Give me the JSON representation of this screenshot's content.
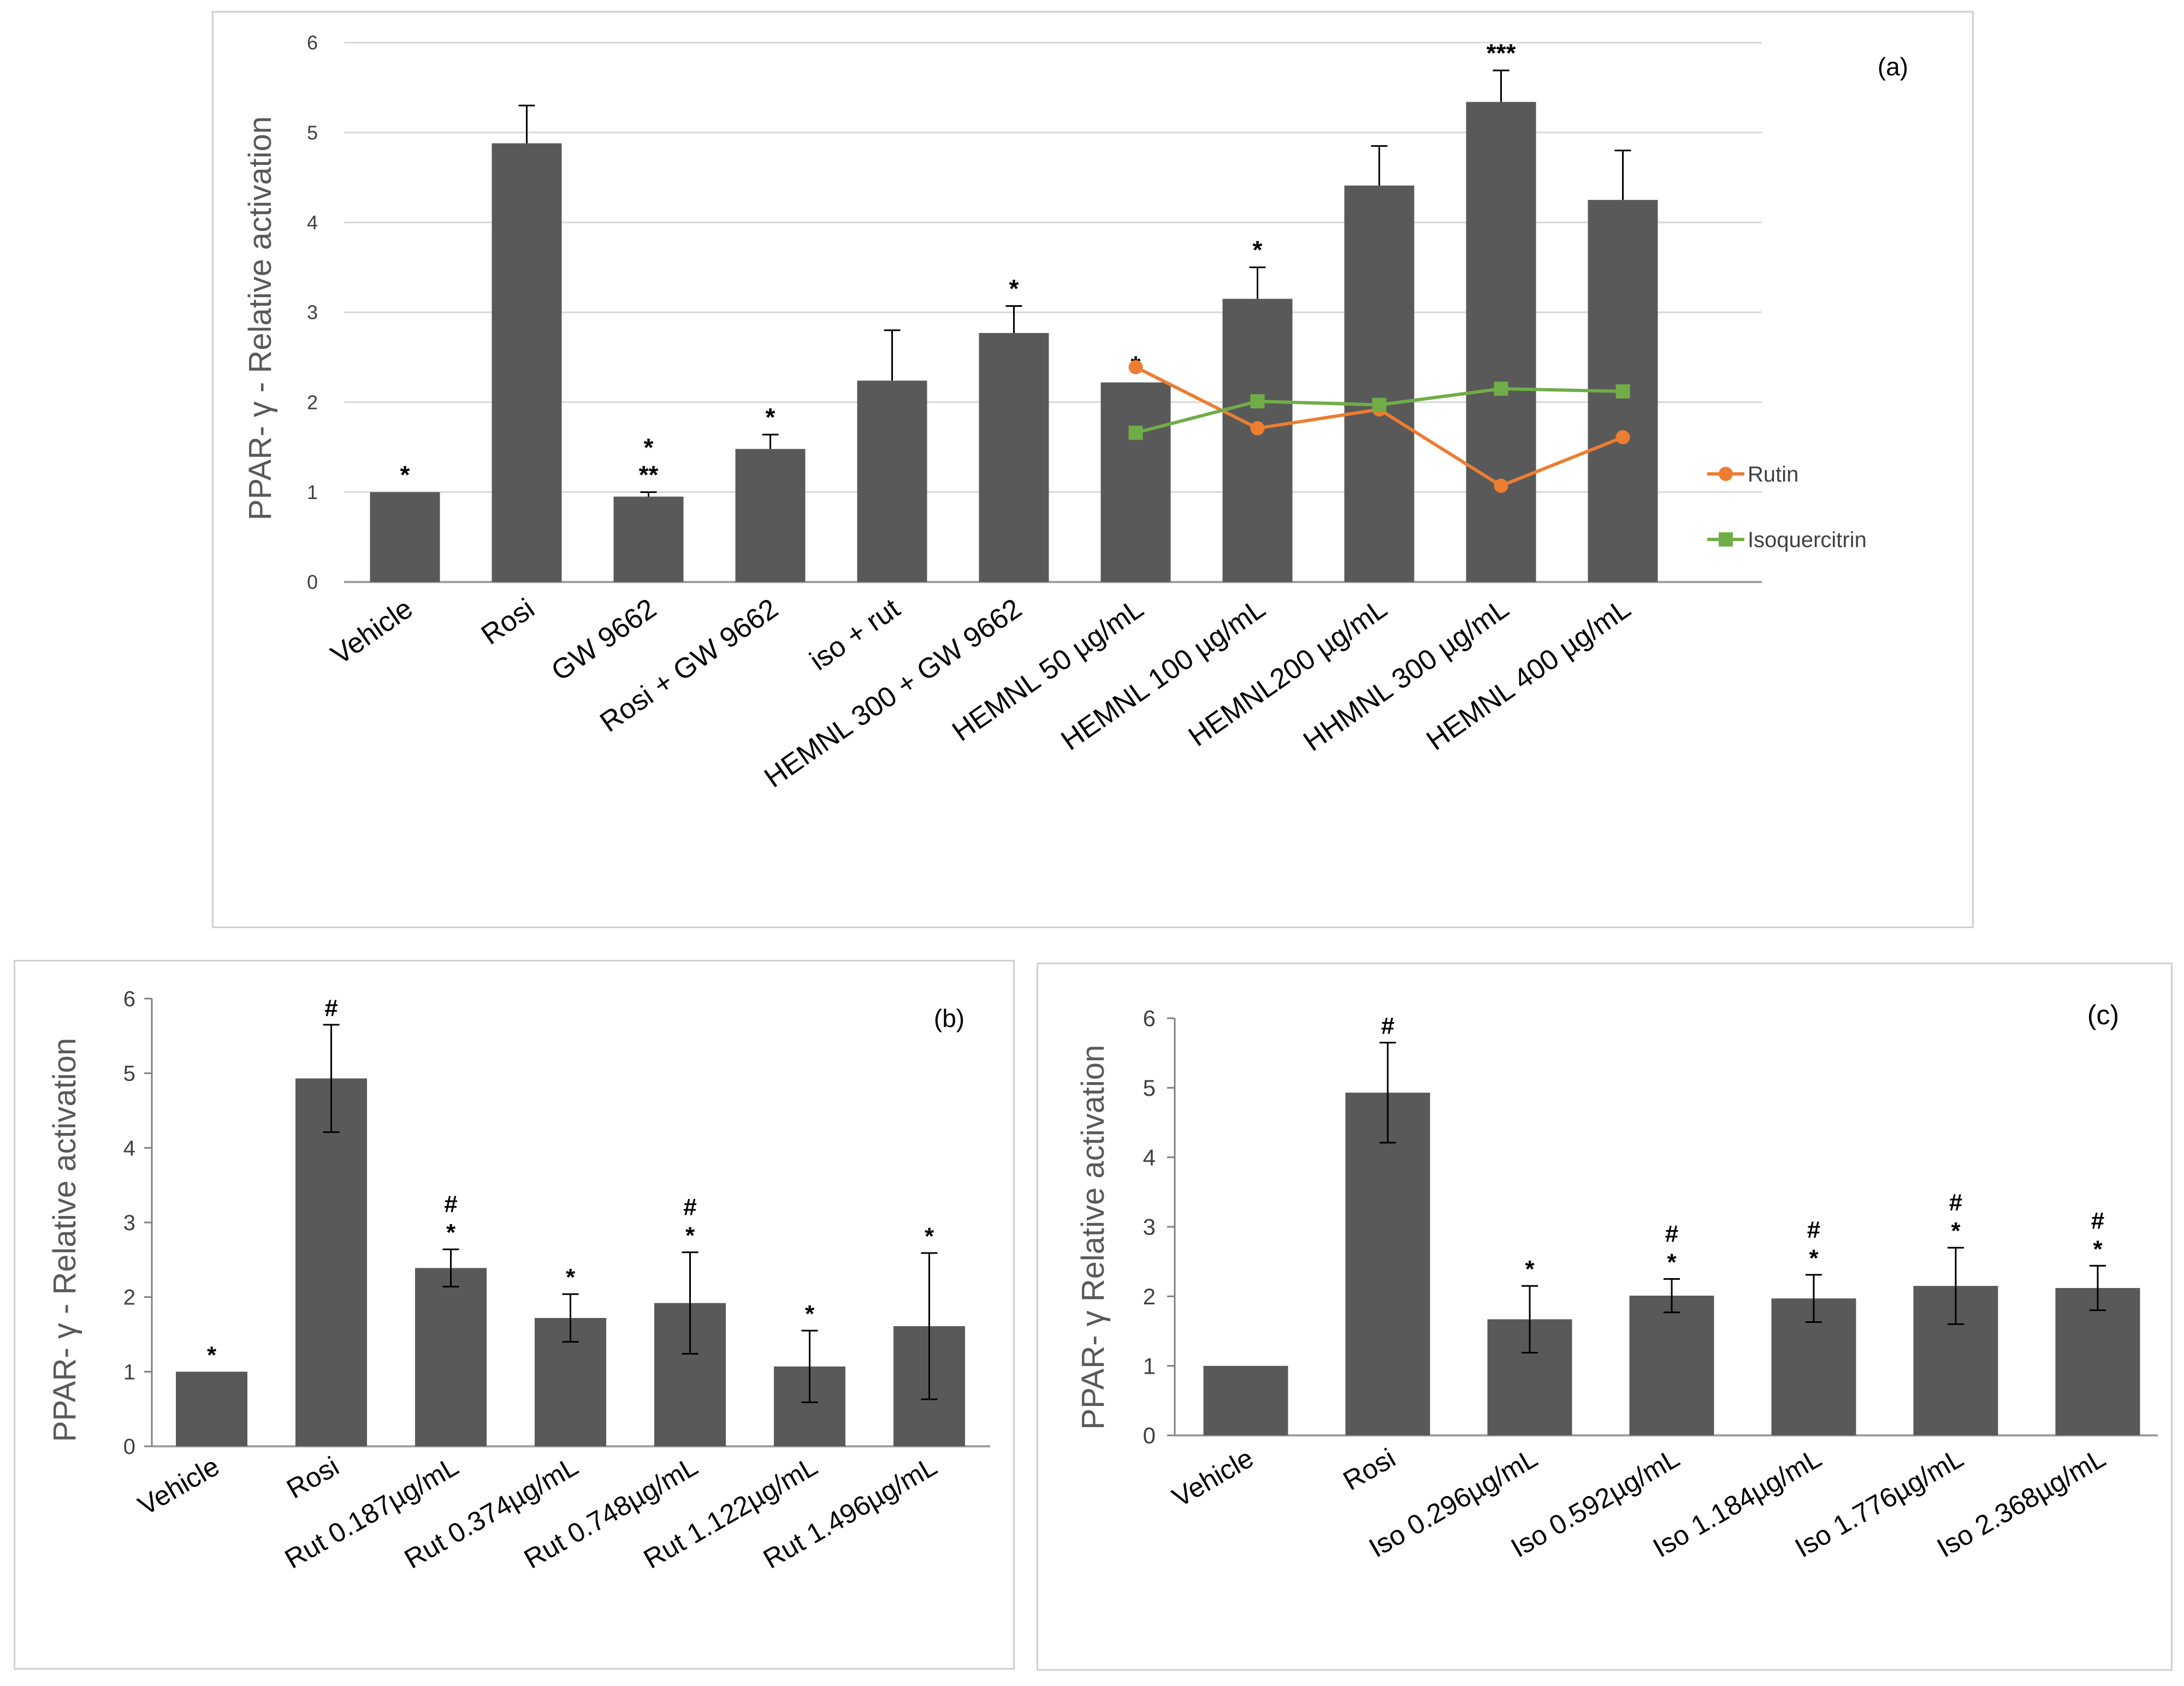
{
  "chart_data": [
    {
      "panel": "(a)",
      "type": "bar",
      "ylabel": "PPAR- γ  - Relative activation",
      "ylim": [
        0,
        6
      ],
      "yticks": [
        "0",
        "1",
        "2",
        "3",
        "4",
        "5",
        "6"
      ],
      "categories": [
        "Vehicle",
        "Rosi",
        "GW 9662",
        "Rosi + GW 9662",
        "iso + rut",
        "HEMNL 300 + GW 9662",
        "HEMNL 50 µg/mL",
        "HEMNL 100 µg/mL",
        "HEMNL200 µg/mL",
        "HHMNL 300 µg/mL",
        "HEMNL 400 µg/mL"
      ],
      "values": [
        1.0,
        4.88,
        0.95,
        1.48,
        2.24,
        2.77,
        2.22,
        3.15,
        4.41,
        5.34,
        4.25
      ],
      "errors": [
        0.0,
        0.42,
        0.05,
        0.16,
        0.56,
        0.3,
        0.0,
        0.35,
        0.44,
        0.35,
        0.55
      ],
      "annotations": [
        [
          "*"
        ],
        [],
        [
          "**",
          "*"
        ],
        [
          "*"
        ],
        [],
        [
          "*"
        ],
        [
          "*"
        ],
        [
          "*"
        ],
        [],
        [
          "***"
        ],
        []
      ],
      "lines": [
        {
          "name": "Rutin",
          "color": "#ed7d31",
          "marker": "circle",
          "x_index": [
            6,
            7,
            8,
            9,
            10
          ],
          "values": [
            2.39,
            1.71,
            1.92,
            1.07,
            1.61
          ]
        },
        {
          "name": "Isoquercitrin",
          "color": "#70ad47",
          "marker": "square",
          "x_index": [
            6,
            7,
            8,
            9,
            10
          ],
          "values": [
            1.66,
            2.01,
            1.97,
            2.15,
            2.12
          ]
        }
      ],
      "bar_color": "#595959"
    },
    {
      "panel": "(b)",
      "type": "bar",
      "ylabel": "PPAR- γ  - Relative activation",
      "ylim": [
        0,
        6
      ],
      "yticks": [
        "0",
        "1",
        "2",
        "3",
        "4",
        "5",
        "6"
      ],
      "categories": [
        "Vehicle",
        "Rosi",
        "Rut 0.187µg/mL",
        "Rut 0.374µg/mL",
        "Rut 0.748µg/mL",
        "Rut 1.122µg/mL",
        "Rut 1.496µg/mL"
      ],
      "values": [
        1.0,
        4.93,
        2.39,
        1.72,
        1.92,
        1.07,
        1.61
      ],
      "errors": [
        0.0,
        0.72,
        0.25,
        0.32,
        0.68,
        0.48,
        0.98
      ],
      "annotations": [
        [
          "*"
        ],
        [
          "#"
        ],
        [
          "*",
          "#"
        ],
        [
          "*"
        ],
        [
          "*",
          "#"
        ],
        [
          "*"
        ],
        [
          "*"
        ]
      ],
      "bar_color": "#595959"
    },
    {
      "panel": "(c)",
      "type": "bar",
      "ylabel": "PPAR- γ  Relative activation",
      "ylim": [
        0,
        6
      ],
      "yticks": [
        "0",
        "1",
        "2",
        "3",
        "4",
        "5",
        "6"
      ],
      "categories": [
        "Vehicle",
        "Rosi",
        "Iso 0.296µg/mL",
        "Iso 0.592µg/mL",
        "Iso 1.184µg/mL",
        "Iso 1.776µg/mL",
        "Iso 2.368µg/mL"
      ],
      "values": [
        1.0,
        4.93,
        1.67,
        2.01,
        1.97,
        2.15,
        2.12
      ],
      "errors": [
        0.0,
        0.72,
        0.48,
        0.24,
        0.34,
        0.55,
        0.32
      ],
      "annotations": [
        [],
        [
          "#"
        ],
        [
          "*"
        ],
        [
          "*",
          "#"
        ],
        [
          "*",
          "#"
        ],
        [
          "*",
          "#"
        ],
        [
          "*",
          "#"
        ]
      ],
      "bar_color": "#595959"
    }
  ]
}
